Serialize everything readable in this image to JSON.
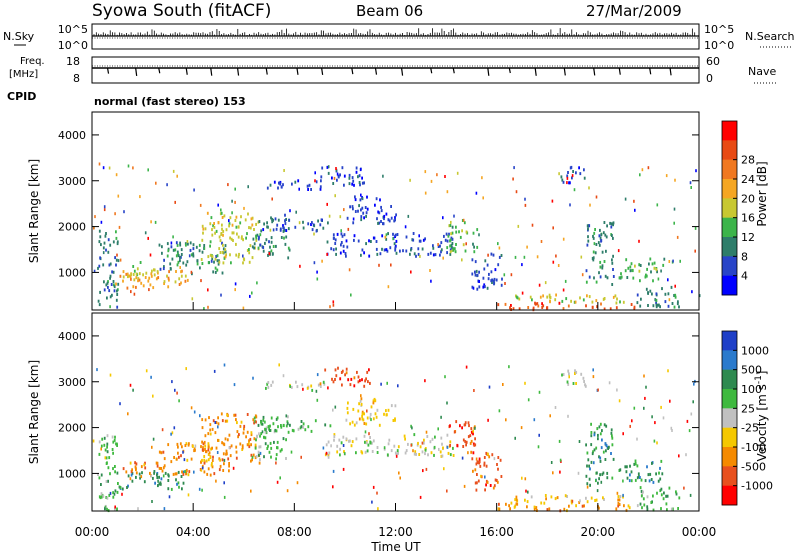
{
  "header": {
    "station": "Syowa South (fitACF)",
    "beam": "Beam 06",
    "date": "27/Mar/2009"
  },
  "side_labels": {
    "nsky": "N.Sky",
    "freq_line1": "Freq.",
    "freq_line2": "[MHz]",
    "cpid": "CPID",
    "nsearch": "N.Search",
    "nave": "Nave",
    "cpid_text": "normal (fast stereo) 153"
  },
  "chart_data": [
    {
      "type": "line",
      "panel": "noise",
      "left_ticks": [
        "10^5",
        "10^0"
      ],
      "right_ticks": [
        "10^5",
        "10^0"
      ]
    },
    {
      "type": "line",
      "panel": "frequency",
      "left_ticks": [
        "18",
        "8"
      ],
      "right_ticks": [
        "60",
        "0"
      ]
    },
    {
      "type": "heatmap",
      "panel": "power",
      "ylabel": "Slant Range [km]",
      "xlim": [
        0,
        24
      ],
      "ylim": [
        180,
        4500
      ],
      "y_ticks": [
        "1000",
        "2000",
        "3000",
        "4000"
      ],
      "colorbar_label": "Power [dB]",
      "colorbar_ticks": [
        "4",
        "8",
        "12",
        "16",
        "20",
        "24",
        "28"
      ],
      "colorbar_colors": [
        "#0000ff",
        "#2844c8",
        "#2e7d6a",
        "#3cb44a",
        "#c8c832",
        "#f5a623",
        "#f07820",
        "#e84a14",
        "#ff0000"
      ],
      "features": [
        {
          "t0": 0.2,
          "t1": 1.0,
          "r0": 180,
          "r1": 1900,
          "level": 2
        },
        {
          "t0": 0.9,
          "t1": 3.8,
          "r0": 650,
          "r1": 1050,
          "level": 5
        },
        {
          "t0": 1.2,
          "t1": 2.6,
          "r0": 900,
          "r1": 1250,
          "level": 4
        },
        {
          "t0": 2.6,
          "t1": 5.4,
          "r0": 950,
          "r1": 1650,
          "level": 2
        },
        {
          "t0": 4.3,
          "t1": 6.6,
          "r0": 1200,
          "r1": 2300,
          "level": 4
        },
        {
          "t0": 6.3,
          "t1": 7.8,
          "r0": 1300,
          "r1": 2250,
          "level": 2
        },
        {
          "t0": 6.6,
          "t1": 9.4,
          "r0": 1900,
          "r1": 2150,
          "level": 1
        },
        {
          "t0": 6.8,
          "t1": 9.2,
          "r0": 2800,
          "r1": 3000,
          "level": 1
        },
        {
          "t0": 9.0,
          "t1": 11.0,
          "r0": 2900,
          "r1": 3300,
          "level": 1
        },
        {
          "t0": 9.2,
          "t1": 14.3,
          "r0": 1350,
          "r1": 1850,
          "level": 1
        },
        {
          "t0": 10.0,
          "t1": 12.0,
          "r0": 2050,
          "r1": 2650,
          "level": 1
        },
        {
          "t0": 14.0,
          "t1": 15.2,
          "r0": 1450,
          "r1": 2150,
          "level": 3
        },
        {
          "t0": 15.0,
          "t1": 16.2,
          "r0": 600,
          "r1": 1450,
          "level": 1
        },
        {
          "t0": 16.0,
          "t1": 21.5,
          "r0": 180,
          "r1": 330,
          "level": 7
        },
        {
          "t0": 16.5,
          "t1": 21.0,
          "r0": 330,
          "r1": 520,
          "level": 4
        },
        {
          "t0": 18.5,
          "t1": 19.5,
          "r0": 2900,
          "r1": 3300,
          "level": 1
        },
        {
          "t0": 19.5,
          "t1": 20.6,
          "r0": 700,
          "r1": 2100,
          "level": 2
        },
        {
          "t0": 20.8,
          "t1": 22.6,
          "r0": 800,
          "r1": 1300,
          "level": 3
        },
        {
          "t0": 21.5,
          "t1": 23.2,
          "r0": 180,
          "r1": 700,
          "level": 2
        }
      ]
    },
    {
      "type": "heatmap",
      "panel": "velocity",
      "ylabel": "Slant Range [km]",
      "xlim": [
        0,
        24
      ],
      "ylim": [
        180,
        4500
      ],
      "y_ticks": [
        "1000",
        "2000",
        "3000",
        "4000"
      ],
      "x_ticks": [
        "00:00",
        "04:00",
        "08:00",
        "12:00",
        "16:00",
        "20:00",
        "00:00"
      ],
      "xlabel": "Time UT",
      "colorbar_label": "Velocity [m s",
      "colorbar_label_sup": "-1",
      "colorbar_label_end": "]",
      "colorbar_ticks": [
        "1000",
        "500",
        "100",
        "25",
        "-25",
        "-100",
        "-500",
        "-1000"
      ],
      "colorbar_colors": [
        "#1e3fc8",
        "#2a7acc",
        "#2e8a50",
        "#3fb93f",
        "#c0c0c0",
        "#f5c800",
        "#f58a00",
        "#e8501e",
        "#ff0000"
      ],
      "features": [
        {
          "t0": 0.2,
          "t1": 1.0,
          "r0": 180,
          "r1": 1900,
          "level": 3
        },
        {
          "t0": 0.9,
          "t1": 3.8,
          "r0": 650,
          "r1": 1050,
          "level": 2
        },
        {
          "t0": 1.2,
          "t1": 2.6,
          "r0": 900,
          "r1": 1250,
          "level": 6
        },
        {
          "t0": 2.6,
          "t1": 5.4,
          "r0": 950,
          "r1": 1650,
          "level": 6
        },
        {
          "t0": 4.3,
          "t1": 6.6,
          "r0": 1200,
          "r1": 2300,
          "level": 6
        },
        {
          "t0": 6.3,
          "t1": 7.8,
          "r0": 1300,
          "r1": 2250,
          "level": 3
        },
        {
          "t0": 6.6,
          "t1": 9.4,
          "r0": 1900,
          "r1": 2150,
          "level": 3
        },
        {
          "t0": 6.8,
          "t1": 9.2,
          "r0": 2800,
          "r1": 3000,
          "level": 4
        },
        {
          "t0": 9.0,
          "t1": 11.0,
          "r0": 2900,
          "r1": 3300,
          "level": 7
        },
        {
          "t0": 9.2,
          "t1": 14.3,
          "r0": 1350,
          "r1": 1850,
          "level": 4
        },
        {
          "t0": 10.0,
          "t1": 12.0,
          "r0": 2050,
          "r1": 2650,
          "level": 5
        },
        {
          "t0": 14.0,
          "t1": 15.2,
          "r0": 1450,
          "r1": 2150,
          "level": 7
        },
        {
          "t0": 15.0,
          "t1": 16.2,
          "r0": 600,
          "r1": 1450,
          "level": 7
        },
        {
          "t0": 16.0,
          "t1": 21.5,
          "r0": 180,
          "r1": 330,
          "level": 6
        },
        {
          "t0": 16.5,
          "t1": 21.0,
          "r0": 330,
          "r1": 520,
          "level": 5
        },
        {
          "t0": 18.5,
          "t1": 19.5,
          "r0": 2900,
          "r1": 3300,
          "level": 4
        },
        {
          "t0": 19.5,
          "t1": 20.6,
          "r0": 700,
          "r1": 2100,
          "level": 2
        },
        {
          "t0": 20.8,
          "t1": 22.6,
          "r0": 800,
          "r1": 1300,
          "level": 2
        },
        {
          "t0": 21.5,
          "t1": 23.2,
          "r0": 180,
          "r1": 700,
          "level": 3
        }
      ]
    }
  ]
}
